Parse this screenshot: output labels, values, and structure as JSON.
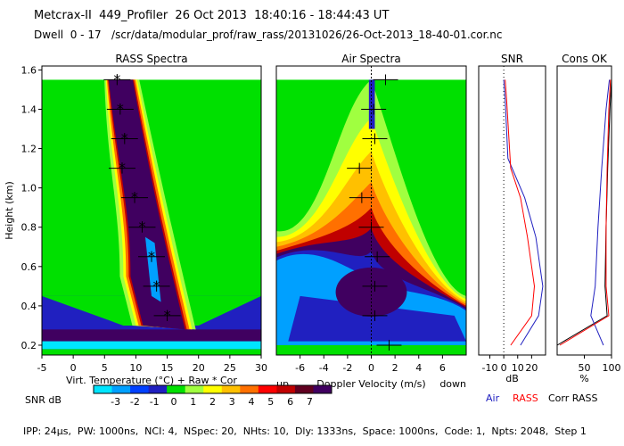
{
  "header": {
    "line1": "Metcrax-II  449_Profiler  26 Oct 2013  18:40:16 - 18:44:43 UT",
    "line2": "Dwell  0 - 17   /scr/data/modular_prof/raw_rass/20131026/26-Oct-2013_18-40-01.cor.nc"
  },
  "footer": "IPP: 24µs,  PW: 1000ns,  NCI: 4,  NSpec: 20,  NHts: 10,  Dly: 1333ns,  Space: 1000ns,  Code: 1,  Npts: 2048,  Step 1",
  "colorbar": {
    "label": "SNR dB",
    "ticks": [
      "-3",
      "-2",
      "-1",
      "0",
      "1",
      "2",
      "3",
      "4",
      "5",
      "6",
      "7"
    ],
    "colors": [
      "#00e5ff",
      "#00a0ff",
      "#0040ff",
      "#2020c0",
      "#00e000",
      "#a0ff40",
      "#ffff00",
      "#ffc000",
      "#ff7000",
      "#ff0000",
      "#c00000",
      "#600020",
      "#400060"
    ]
  },
  "chart_data": [
    {
      "type": "heatmap",
      "title": "RASS Spectra",
      "xlabel": "Virt. Temperature (°C)  + Raw  * Cor",
      "ylabel": "Height (km)",
      "xlim": [
        -5,
        30
      ],
      "ylim": [
        0.15,
        1.62
      ],
      "xticks": [
        "-5",
        "0",
        "5",
        "10",
        "15",
        "20",
        "25",
        "30"
      ],
      "yticks": [
        "0.2",
        "0.4",
        "0.6",
        "0.8",
        "1.0",
        "1.2",
        "1.4",
        "1.6"
      ],
      "raw_points": [
        {
          "h": 1.55,
          "t": 7.0
        },
        {
          "h": 1.4,
          "t": 7.5
        },
        {
          "h": 1.25,
          "t": 8.2
        },
        {
          "h": 1.1,
          "t": 7.8
        },
        {
          "h": 0.95,
          "t": 9.8
        },
        {
          "h": 0.8,
          "t": 11.0
        },
        {
          "h": 0.65,
          "t": 12.5
        },
        {
          "h": 0.5,
          "t": 13.3
        },
        {
          "h": 0.35,
          "t": 15.0
        }
      ]
    },
    {
      "type": "heatmap",
      "title": "Air Spectra",
      "xlabel": "Doppler Velocity (m/s)",
      "xlabel_left": "up",
      "xlabel_right": "down",
      "xlim": [
        -8,
        8
      ],
      "xticks": [
        "-6",
        "-4",
        "-2",
        "0",
        "2",
        "4",
        "6"
      ],
      "points": [
        {
          "h": 1.55,
          "v": 1.2
        },
        {
          "h": 1.4,
          "v": 0.2
        },
        {
          "h": 1.25,
          "v": 0.3
        },
        {
          "h": 1.1,
          "v": -1.0
        },
        {
          "h": 0.95,
          "v": -0.8
        },
        {
          "h": 0.8,
          "v": 0.0
        },
        {
          "h": 0.65,
          "v": 0.5
        },
        {
          "h": 0.5,
          "v": 0.3
        },
        {
          "h": 0.35,
          "v": 0.3
        },
        {
          "h": 0.2,
          "v": 1.5
        }
      ]
    },
    {
      "type": "line",
      "title": "SNR",
      "xlabel": "dB",
      "xlim": [
        -18,
        30
      ],
      "xticks": [
        "-10",
        "0",
        "10",
        "20"
      ],
      "series": [
        {
          "name": "Air",
          "color": "#2020c0",
          "points": [
            [
              0,
              1.55
            ],
            [
              1,
              1.45
            ],
            [
              3,
              1.15
            ],
            [
              15,
              0.95
            ],
            [
              23,
              0.75
            ],
            [
              28,
              0.5
            ],
            [
              25,
              0.35
            ],
            [
              12,
              0.2
            ]
          ]
        },
        {
          "name": "RASS",
          "color": "#ff0000",
          "points": [
            [
              1,
              1.55
            ],
            [
              2,
              1.45
            ],
            [
              5,
              1.1
            ],
            [
              12,
              0.95
            ],
            [
              17,
              0.75
            ],
            [
              22,
              0.5
            ],
            [
              20,
              0.35
            ],
            [
              5,
              0.2
            ]
          ]
        }
      ]
    },
    {
      "type": "line",
      "title": "Cons OK",
      "xlabel": "%",
      "xlim": [
        0,
        100
      ],
      "xticks": [
        "50",
        "100"
      ],
      "series": [
        {
          "name": "Corr RASS",
          "color": "#000000",
          "points": [
            [
              100,
              1.55
            ],
            [
              97,
              1.4
            ],
            [
              93,
              1.1
            ],
            [
              90,
              0.8
            ],
            [
              88,
              0.5
            ],
            [
              92,
              0.35
            ],
            [
              0,
              0.2
            ]
          ]
        },
        {
          "name": "Air",
          "color": "#2020c0",
          "points": [
            [
              96,
              1.55
            ],
            [
              90,
              1.4
            ],
            [
              82,
              1.1
            ],
            [
              75,
              0.8
            ],
            [
              70,
              0.5
            ],
            [
              62,
              0.35
            ],
            [
              85,
              0.2
            ]
          ]
        },
        {
          "name": "RASS",
          "color": "#ff0000",
          "points": [
            [
              98,
              1.55
            ],
            [
              95,
              1.4
            ],
            [
              92,
              1.1
            ],
            [
              90,
              0.8
            ],
            [
              90,
              0.5
            ],
            [
              95,
              0.35
            ],
            [
              5,
              0.2
            ]
          ]
        }
      ]
    }
  ],
  "legend": {
    "air": "Air",
    "rass": "RASS",
    "corr": "Corr RASS",
    "air_color": "#2020c0",
    "rass_color": "#ff0000",
    "corr_color": "#000000"
  }
}
